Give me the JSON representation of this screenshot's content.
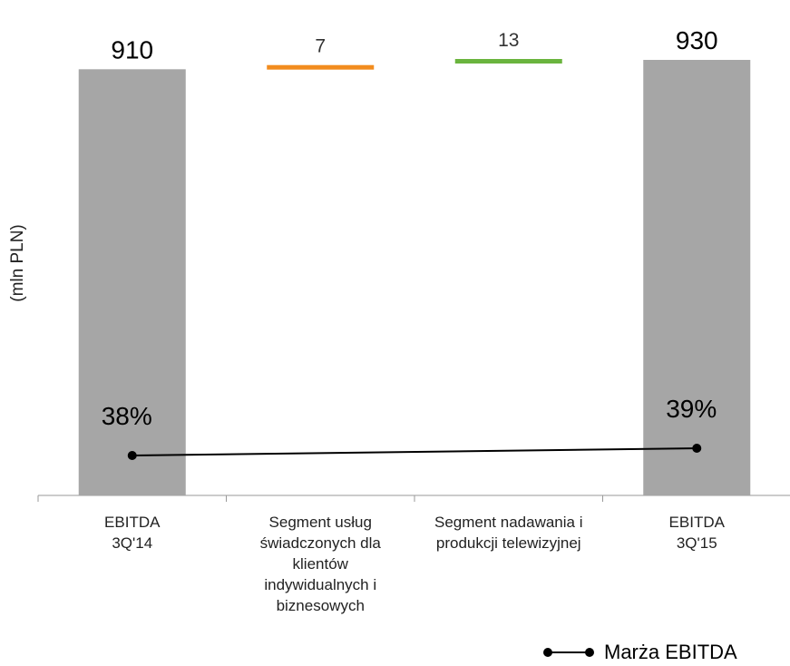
{
  "chart_data": {
    "type": "bar",
    "subtype": "waterfall",
    "ylabel": "(mln PLN)",
    "categories": [
      "EBITDA\n3Q'14",
      "Segment usług\nświadczonych dla\nklientów\nindywidualnych i\nbiznesowych",
      "Segment nadawania i\nprodukcji telewizyjnej",
      "EBITDA\n3Q'15"
    ],
    "series": [
      {
        "kind": "bar",
        "values": [
          910,
          7,
          13,
          930
        ],
        "value_labels": [
          "910",
          "7",
          "13",
          "930"
        ],
        "bar_types": [
          "total",
          "delta",
          "delta",
          "total"
        ],
        "colors": [
          "#a6a6a6",
          "#f28c1e",
          "#6ab43e",
          "#a6a6a6"
        ]
      },
      {
        "name": "Marża EBITDA",
        "kind": "line",
        "values": [
          38,
          null,
          null,
          39
        ],
        "value_labels": [
          "38%",
          "",
          "",
          "39%"
        ],
        "color": "#000000"
      }
    ],
    "legend": {
      "position": "bottom-right",
      "entries": [
        "Marża EBITDA"
      ]
    },
    "grid": false
  }
}
